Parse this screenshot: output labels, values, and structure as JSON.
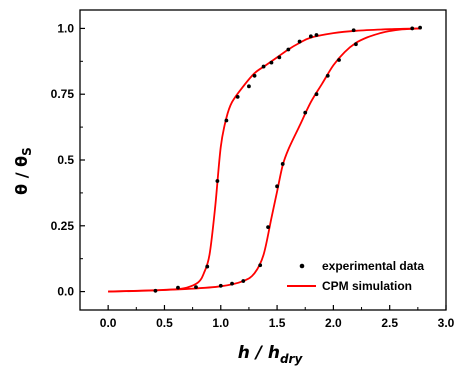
{
  "chart_data": {
    "type": "scatter",
    "xlabel": {
      "main": "h",
      "sep": " / ",
      "den": "h",
      "den_sub": "dry"
    },
    "ylabel": {
      "num": "θ",
      "sep": " / ",
      "den": "θ",
      "den_sub": "S"
    },
    "xlim": [
      -0.25,
      3.0
    ],
    "ylim": [
      -0.07,
      1.07
    ],
    "xticks": [
      0.0,
      0.5,
      1.0,
      1.5,
      2.0,
      2.5,
      3.0
    ],
    "yticks": [
      0.0,
      0.25,
      0.5,
      0.75,
      1.0
    ],
    "xtick_labels": [
      "0.0",
      "0.5",
      "1.0",
      "1.5",
      "2.0",
      "2.5",
      "3.0"
    ],
    "ytick_labels": [
      "0.0",
      "0.25",
      "0.5",
      "0.75",
      "1.0"
    ],
    "legend_position": "bottom-right",
    "series": [
      {
        "name": "experimental data",
        "kind": "scatter",
        "color": "#000000",
        "points": [
          [
            0.42,
            0.003
          ],
          [
            0.62,
            0.015
          ],
          [
            0.78,
            0.017
          ],
          [
            0.88,
            0.095
          ],
          [
            0.97,
            0.42
          ],
          [
            1.05,
            0.65
          ],
          [
            1.15,
            0.74
          ],
          [
            1.25,
            0.78
          ],
          [
            1.3,
            0.82
          ],
          [
            1.38,
            0.855
          ],
          [
            1.45,
            0.87
          ],
          [
            1.52,
            0.89
          ],
          [
            1.6,
            0.92
          ],
          [
            1.7,
            0.95
          ],
          [
            1.8,
            0.97
          ],
          [
            1.85,
            0.975
          ],
          [
            2.18,
            0.993
          ],
          [
            2.7,
            1.0
          ],
          [
            2.77,
            1.003
          ],
          [
            1.0,
            0.022
          ],
          [
            1.1,
            0.03
          ],
          [
            1.2,
            0.04
          ],
          [
            1.35,
            0.1
          ],
          [
            1.42,
            0.245
          ],
          [
            1.5,
            0.4
          ],
          [
            1.55,
            0.485
          ],
          [
            1.75,
            0.68
          ],
          [
            1.85,
            0.75
          ],
          [
            1.95,
            0.82
          ],
          [
            2.05,
            0.88
          ],
          [
            2.2,
            0.94
          ]
        ]
      },
      {
        "name": "CPM simulation",
        "kind": "line",
        "color": "#ff0000",
        "curves": [
          [
            [
              0.0,
              0.0
            ],
            [
              0.4,
              0.004
            ],
            [
              0.6,
              0.009
            ],
            [
              0.7,
              0.015
            ],
            [
              0.8,
              0.035
            ],
            [
              0.85,
              0.07
            ],
            [
              0.9,
              0.14
            ],
            [
              0.95,
              0.32
            ],
            [
              1.0,
              0.55
            ],
            [
              1.05,
              0.66
            ],
            [
              1.1,
              0.72
            ],
            [
              1.2,
              0.78
            ],
            [
              1.3,
              0.83
            ],
            [
              1.4,
              0.86
            ],
            [
              1.5,
              0.89
            ],
            [
              1.6,
              0.92
            ],
            [
              1.7,
              0.945
            ],
            [
              1.8,
              0.965
            ],
            [
              2.0,
              0.982
            ],
            [
              2.2,
              0.991
            ],
            [
              2.5,
              0.997
            ],
            [
              2.78,
              1.0
            ]
          ],
          [
            [
              0.0,
              0.0
            ],
            [
              0.4,
              0.005
            ],
            [
              0.7,
              0.01
            ],
            [
              1.0,
              0.02
            ],
            [
              1.2,
              0.04
            ],
            [
              1.3,
              0.07
            ],
            [
              1.38,
              0.14
            ],
            [
              1.45,
              0.28
            ],
            [
              1.5,
              0.38
            ],
            [
              1.55,
              0.48
            ],
            [
              1.6,
              0.54
            ],
            [
              1.7,
              0.63
            ],
            [
              1.8,
              0.72
            ],
            [
              1.9,
              0.79
            ],
            [
              2.0,
              0.86
            ],
            [
              2.1,
              0.91
            ],
            [
              2.2,
              0.945
            ],
            [
              2.3,
              0.966
            ],
            [
              2.4,
              0.98
            ],
            [
              2.5,
              0.99
            ],
            [
              2.6,
              0.996
            ],
            [
              2.78,
              1.0
            ]
          ]
        ]
      }
    ]
  }
}
